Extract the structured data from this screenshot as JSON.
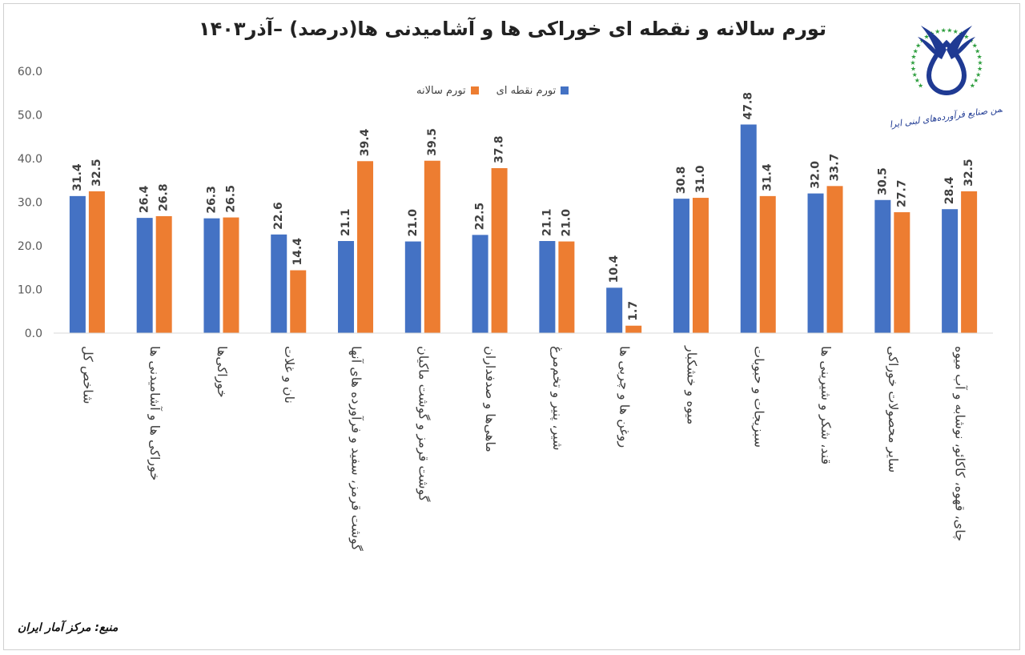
{
  "title": "تورم سالانه و نقطه ای خوراکی ها و آشامیدنی ها(درصد) –آذر۱۴۰۳",
  "source": "منبع: مرکز آمار ایران",
  "logo_text": "انجمن صنایع فرآورده‌های لبنی ایران",
  "colors": {
    "point": "#4472C4",
    "annual": "#ED7D31"
  },
  "chart_data": {
    "type": "bar",
    "title": "تورم سالانه و نقطه ای خوراکی ها و آشامیدنی ها(درصد) –آذر۱۴۰۳",
    "categories": [
      "شاخص کل",
      "خوراکی ها و آشامیدنی ها",
      "خوراکی‌ها",
      "نان و غلات",
      "گوشت قرمز، سفید و فرآورده های آنها",
      "گوشت قرمز و گوشت ماکیان",
      "ماهی‌ها و صدفداران",
      "شیر، پنیر و تخم‌مرغ",
      "روغن ها و چربی ها",
      "میوه و خشکبار",
      "سبزیجات و حبوبات",
      "قند، شکر و شیرینی ها",
      "سایر محصولات خوراکی",
      "چای، قهوه، کاکائو، نوشابه و آب میوه"
    ],
    "series": [
      {
        "name": "تورم نقطه ای",
        "values": [
          31.4,
          26.4,
          26.3,
          22.6,
          21.1,
          21.0,
          22.5,
          21.1,
          10.4,
          30.8,
          47.8,
          32.0,
          30.5,
          28.4
        ]
      },
      {
        "name": "تورم سالانه",
        "values": [
          32.5,
          26.8,
          26.5,
          14.4,
          39.4,
          39.5,
          37.8,
          21.0,
          1.7,
          31.0,
          31.4,
          33.7,
          27.7,
          32.5
        ]
      }
    ],
    "yticks": [
      "0.0",
      "10.0",
      "20.0",
      "30.0",
      "40.0",
      "50.0",
      "60.0"
    ],
    "ylim": [
      0,
      60
    ],
    "grid": false,
    "legend": "top-center"
  }
}
